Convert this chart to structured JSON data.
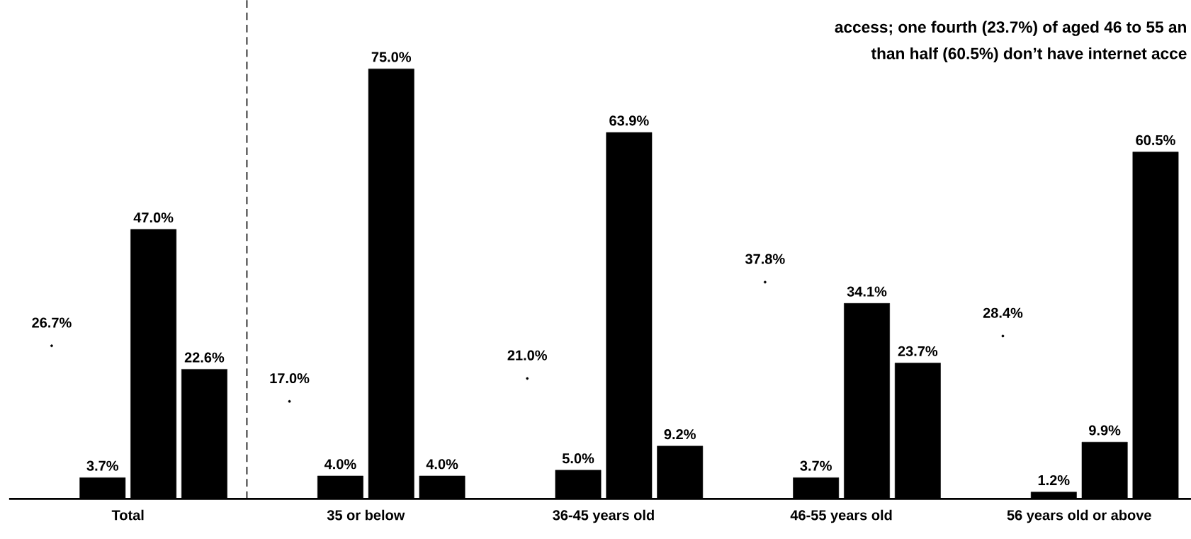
{
  "chart_data": {
    "type": "bar",
    "categories": [
      "Total",
      "35 or below",
      "36-45 years old",
      "46-55 years old",
      "56 years old or above"
    ],
    "series": [
      {
        "type": "scatter",
        "color": "#000000",
        "values": [
          26.7,
          17.0,
          21.0,
          37.8,
          28.4
        ],
        "value_labels": [
          "26.7%",
          "17.0%",
          "21.0%",
          "37.8%",
          "28.4%"
        ]
      },
      {
        "color": "#000000",
        "values": [
          3.7,
          4.0,
          5.0,
          3.7,
          1.2
        ],
        "value_labels": [
          "3.7%",
          "4.0%",
          "5.0%",
          "3.7%",
          "1.2%"
        ]
      },
      {
        "color": "#000000",
        "values": [
          47.0,
          75.0,
          63.9,
          34.1,
          9.9
        ],
        "value_labels": [
          "47.0%",
          "75.0%",
          "63.9%",
          "34.1%",
          "9.9%"
        ]
      },
      {
        "color": "#000000",
        "values": [
          22.6,
          4.0,
          9.2,
          23.7,
          60.5
        ],
        "value_labels": [
          "22.6%",
          "4.0%",
          "9.2%",
          "23.7%",
          "60.5%"
        ]
      }
    ],
    "ylim": [
      0,
      87
    ],
    "annotations": [
      "access; one fourth (23.7%) of aged 46 to 55 an",
      "than half (60.5%) don’t have internet acce"
    ]
  }
}
